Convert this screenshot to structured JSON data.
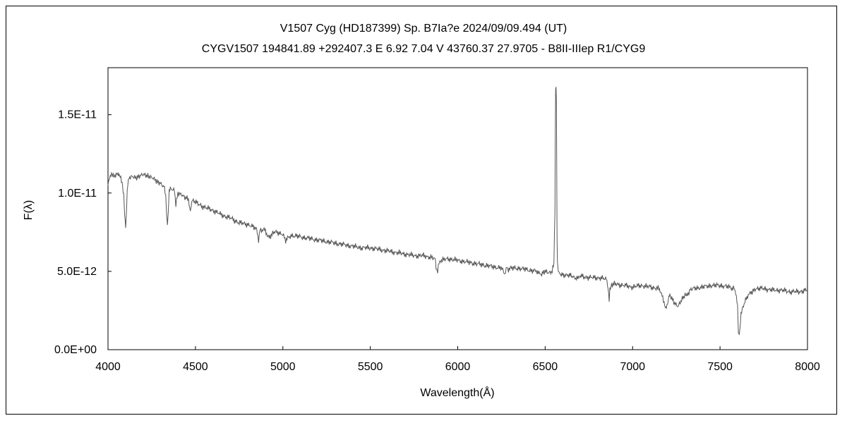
{
  "chart_data": {
    "type": "line",
    "title": "V1507 Cyg (HD187399)    Sp. B7Ia?e    2024/09/09.494 (UT)",
    "subtitle": "CYGV1507 194841.89 +292407.3 E 6.92 7.04 V 43760.37 27.9705 - B8II-IIIep R1/CYG9",
    "xlabel": "Wavelength(Å)",
    "ylabel": "F(λ)",
    "xlim": [
      4000,
      8000
    ],
    "ylim": [
      0,
      1.8e-11
    ],
    "xticks": [
      4000,
      4500,
      5000,
      5500,
      6000,
      6500,
      7000,
      7500,
      8000
    ],
    "xtick_labels": [
      "4000",
      "4500",
      "5000",
      "5500",
      "6000",
      "6500",
      "7000",
      "7500",
      "8000"
    ],
    "yticks": [
      0,
      5e-12,
      1e-11,
      1.5e-11
    ],
    "ytick_labels": [
      "0.0E+00",
      "5.0E-12",
      "1.0E-11",
      "1.5E-11"
    ],
    "grid": false,
    "legend": "none",
    "line_color": "#555555",
    "series": [
      {
        "x": [
          4000,
          4010,
          4020,
          4030,
          4040,
          4050,
          4060,
          4070,
          4080,
          4090,
          4095,
          4101,
          4106,
          4110,
          4120,
          4140,
          4160,
          4180,
          4200,
          4220,
          4240,
          4260,
          4280,
          4300,
          4320,
          4330,
          4335,
          4340,
          4345,
          4350,
          4360,
          4380,
          4388,
          4400,
          4420,
          4440,
          4460,
          4471,
          4480,
          4500,
          4550,
          4600,
          4650,
          4700,
          4750,
          4800,
          4850,
          4861,
          4870,
          4900,
          4922,
          4950,
          5000,
          5016,
          5050,
          5100,
          5150,
          5200,
          5250,
          5300,
          5350,
          5400,
          5450,
          5500,
          5550,
          5600,
          5650,
          5700,
          5750,
          5800,
          5850,
          5870,
          5876,
          5885,
          5893,
          5900,
          5950,
          6000,
          6050,
          6100,
          6150,
          6200,
          6250,
          6270,
          6280,
          6290,
          6300,
          6350,
          6400,
          6450,
          6480,
          6500,
          6520,
          6540,
          6550,
          6556,
          6558,
          6560,
          6562,
          6564,
          6566,
          6568,
          6570,
          6575,
          6580,
          6600,
          6650,
          6678,
          6700,
          6750,
          6800,
          6850,
          6860,
          6866,
          6870,
          6880,
          6900,
          6950,
          7000,
          7050,
          7100,
          7150,
          7165,
          7180,
          7190,
          7200,
          7210,
          7220,
          7240,
          7260,
          7280,
          7300,
          7310,
          7330,
          7350,
          7400,
          7450,
          7500,
          7550,
          7580,
          7590,
          7600,
          7605,
          7610,
          7620,
          7630,
          7650,
          7680,
          7700,
          7750,
          7800,
          7850,
          7900,
          7950,
          8000
        ],
        "y": [
          1.06e-11,
          1.1e-11,
          1.12e-11,
          1.11e-11,
          1.1e-11,
          1.12e-11,
          1.11e-11,
          1.1e-11,
          1.06e-11,
          9.8e-12,
          8.8e-12,
          7.8e-12,
          8.8e-12,
          1.02e-11,
          1.1e-11,
          1.11e-11,
          1.1e-11,
          1.11e-11,
          1.12e-11,
          1.11e-11,
          1.1e-11,
          1.09e-11,
          1.07e-11,
          1.06e-11,
          1.04e-11,
          9.8e-12,
          8.8e-12,
          7.8e-12,
          9e-12,
          1.01e-11,
          1.03e-11,
          1.02e-11,
          9.3e-12,
          1e-11,
          9.9e-12,
          9.7e-12,
          9.6e-12,
          8.8e-12,
          9.5e-12,
          9.4e-12,
          9.1e-12,
          8.9e-12,
          8.6e-12,
          8.4e-12,
          8.1e-12,
          8e-12,
          7.7e-12,
          7e-12,
          7.7e-12,
          7.6e-12,
          7.1e-12,
          7.5e-12,
          7.4e-12,
          7e-12,
          7.3e-12,
          7.2e-12,
          7.1e-12,
          7e-12,
          6.9e-12,
          6.8e-12,
          6.7e-12,
          6.6e-12,
          6.5e-12,
          6.5e-12,
          6.4e-12,
          6.3e-12,
          6.2e-12,
          6.1e-12,
          6e-12,
          6e-12,
          5.9e-12,
          5.8e-12,
          5.2e-12,
          5e-12,
          5.5e-12,
          5.7e-12,
          5.8e-12,
          5.7e-12,
          5.6e-12,
          5.5e-12,
          5.4e-12,
          5.3e-12,
          5.2e-12,
          4.8e-12,
          5.3e-12,
          5e-12,
          5.2e-12,
          5.2e-12,
          5.1e-12,
          5e-12,
          4.8e-12,
          5e-12,
          4.9e-12,
          5e-12,
          5.5e-12,
          9e-12,
          1.4e-11,
          1.65e-11,
          1.68e-11,
          1.6e-11,
          1.2e-11,
          7e-12,
          5.5e-12,
          5.1e-12,
          4.9e-12,
          4.8e-12,
          4.7e-12,
          4.5e-12,
          4.7e-12,
          4.6e-12,
          4.6e-12,
          4.5e-12,
          3.8e-12,
          3.1e-12,
          3.8e-12,
          4.1e-12,
          4.2e-12,
          4.1e-12,
          4e-12,
          4.1e-12,
          4e-12,
          3.9e-12,
          3.6e-12,
          3e-12,
          2.7e-12,
          3e-12,
          3.6e-12,
          3.4e-12,
          3e-12,
          2.8e-12,
          3.2e-12,
          3.5e-12,
          3.4e-12,
          3.8e-12,
          3.9e-12,
          4e-12,
          4.1e-12,
          4.1e-12,
          4e-12,
          3.9e-12,
          3.5e-12,
          2.8e-12,
          1.2e-12,
          8e-13,
          2.2e-12,
          2.7e-12,
          3.3e-12,
          3.7e-12,
          3.9e-12,
          3.9e-12,
          3.8e-12,
          3.8e-12,
          3.7e-12,
          3.7e-12,
          3.8e-12
        ]
      }
    ]
  }
}
